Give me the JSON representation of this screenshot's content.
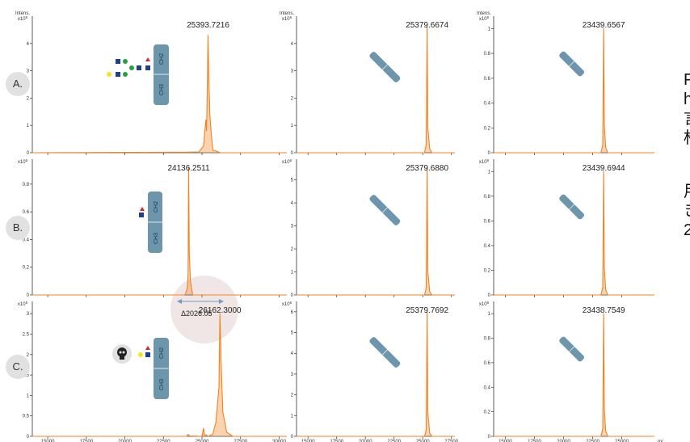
{
  "rows": [
    {
      "label": "A."
    },
    {
      "label": "B."
    },
    {
      "label": "C."
    }
  ],
  "columns": [
    {
      "ylabel": "Intens."
    },
    {
      "ylabel": "Intens."
    },
    {
      "ylabel": "Intens."
    }
  ],
  "delta_label": "Δ2026.05",
  "domain_labels": {
    "ch2": "CH2",
    "ch3": "CH3"
  },
  "side_text": [
    "F",
    "h",
    "言",
    "柞",
    "用",
    "き",
    "2"
  ],
  "colors": {
    "spectrum": "#f58220",
    "domain": "#6d96ad",
    "label_bg": "#e1e1e1",
    "glycan_blue": "#1f3f93",
    "glycan_green": "#23a23c",
    "glycan_yellow": "#f7e41e",
    "glycan_red": "#d8242a",
    "highlight": "#eadcdc",
    "arrow": "#6f9fc0"
  },
  "icons": {
    "glycan": "glycan-structure-icon",
    "toxin": "skull-icon",
    "domain": "antibody-domain-icon"
  },
  "chart_data": [
    {
      "type": "line",
      "row": "A",
      "col": 1,
      "ylabel": "Intens.",
      "exponent": "x10^5",
      "xlim": [
        14000,
        30500
      ],
      "ylim": [
        0,
        5
      ],
      "yticks": [
        0,
        1,
        2,
        3,
        4
      ],
      "xticks": [
        15000,
        17500,
        20000,
        22500,
        25000,
        27500,
        30000
      ],
      "peak_label": "25393.7216",
      "series": [
        {
          "x": [
            14000,
            24000,
            24800,
            25100,
            25250,
            25300,
            25394,
            25450,
            25520,
            25600,
            25700,
            26200,
            30500
          ],
          "y": [
            0,
            0.02,
            0.03,
            0.25,
            1.2,
            0.8,
            4.3,
            2.6,
            1.3,
            0.7,
            0.1,
            0,
            0
          ]
        }
      ]
    },
    {
      "type": "line",
      "row": "A",
      "col": 2,
      "ylabel": "Intens.",
      "exponent": "x10^6",
      "xlim": [
        14000,
        27800
      ],
      "ylim": [
        0,
        5
      ],
      "yticks": [
        0,
        1,
        2,
        3,
        4
      ],
      "xticks": [
        15000,
        17500,
        20000,
        22500,
        25000,
        27500
      ],
      "peak_label": "25379.6674",
      "series": [
        {
          "x": [
            14000,
            25150,
            25300,
            25380,
            25450,
            25600,
            25800,
            27800
          ],
          "y": [
            0,
            0,
            0.3,
            4.6,
            0.9,
            0.15,
            0,
            0
          ]
        }
      ]
    },
    {
      "type": "line",
      "row": "A",
      "col": 3,
      "ylabel": "Intens.",
      "exponent": "x10^6",
      "xlim": [
        14000,
        27800
      ],
      "ylim": [
        0,
        1.1
      ],
      "yticks": [
        0,
        0.2,
        0.4,
        0.6,
        0.8,
        1.0
      ],
      "xticks": [
        15000,
        17500,
        20000,
        22500,
        25000
      ],
      "peak_label": "23439.6567",
      "series": [
        {
          "x": [
            14000,
            23200,
            23360,
            23440,
            23500,
            23620,
            23800,
            27800
          ],
          "y": [
            0,
            0,
            0.06,
            1.0,
            0.22,
            0.04,
            0,
            0
          ]
        }
      ]
    },
    {
      "type": "line",
      "row": "B",
      "col": 1,
      "ylabel": "",
      "exponent": "x10^6",
      "xlim": [
        14000,
        30500
      ],
      "ylim": [
        0,
        0.98
      ],
      "yticks": [
        0,
        0.2,
        0.4,
        0.6,
        0.8
      ],
      "xticks": [
        15000,
        17500,
        20000,
        22500,
        25000,
        27500,
        30000
      ],
      "peak_label": "24136.2511",
      "series": [
        {
          "x": [
            14000,
            23900,
            24050,
            24100,
            24136,
            24180,
            24250,
            24400,
            30500
          ],
          "y": [
            0,
            0,
            0.05,
            0.15,
            0.92,
            0.3,
            0.1,
            0,
            0
          ]
        }
      ]
    },
    {
      "type": "line",
      "row": "B",
      "col": 2,
      "ylabel": "",
      "exponent": "x10^6",
      "xlim": [
        14000,
        27800
      ],
      "ylim": [
        0,
        5.9
      ],
      "yticks": [
        0,
        1,
        2,
        3,
        4,
        5
      ],
      "xticks": [
        15000,
        17500,
        20000,
        22500,
        25000,
        27500
      ],
      "peak_label": "25379.6880",
      "series": [
        {
          "x": [
            14000,
            25150,
            25300,
            25380,
            25450,
            25600,
            25800,
            27800
          ],
          "y": [
            0,
            0,
            0.3,
            5.5,
            1.0,
            0.15,
            0,
            0
          ]
        }
      ]
    },
    {
      "type": "line",
      "row": "B",
      "col": 3,
      "ylabel": "",
      "exponent": "x10^6",
      "xlim": [
        14000,
        27800
      ],
      "ylim": [
        0,
        1.1
      ],
      "yticks": [
        0,
        0.2,
        0.4,
        0.6,
        0.8,
        1.0
      ],
      "xticks": [
        15000,
        17500,
        20000,
        22500,
        25000
      ],
      "peak_label": "23439.6944",
      "series": [
        {
          "x": [
            14000,
            23200,
            23360,
            23440,
            23500,
            23620,
            23800,
            27800
          ],
          "y": [
            0,
            0,
            0.06,
            1.0,
            0.22,
            0.04,
            0,
            0
          ]
        }
      ]
    },
    {
      "type": "line",
      "row": "C",
      "col": 1,
      "ylabel": "",
      "exponent": "x10^5",
      "xlim": [
        14000,
        30500
      ],
      "ylim": [
        0,
        3.3
      ],
      "yticks": [
        0,
        0.5,
        1.0,
        1.5,
        2.0,
        2.5,
        3.0
      ],
      "xticks": [
        15000,
        17500,
        20000,
        22500,
        25000,
        27500,
        30000
      ],
      "xticklabels": [
        "15000",
        "17500",
        "20000",
        "22500",
        "25000",
        "27500",
        "30000"
      ],
      "peak_label": "26162.3000",
      "series": [
        {
          "x": [
            14000,
            24000,
            24100,
            24200,
            25000,
            25100,
            25160,
            25250,
            25400,
            25700,
            25900,
            26100,
            26162,
            26240,
            26350,
            26600,
            27000,
            30500
          ],
          "y": [
            0,
            0,
            0.05,
            0.01,
            0,
            0.2,
            0.03,
            0.04,
            0,
            0.05,
            0.35,
            1.2,
            3.0,
            1.8,
            0.6,
            0.1,
            0,
            0
          ]
        }
      ]
    },
    {
      "type": "line",
      "row": "C",
      "col": 2,
      "ylabel": "",
      "exponent": "x10^6",
      "xlim": [
        14000,
        27800
      ],
      "ylim": [
        0,
        6.5
      ],
      "yticks": [
        0,
        1,
        2,
        3,
        4,
        5,
        6
      ],
      "xticks": [
        15000,
        17500,
        20000,
        22500,
        25000,
        27500
      ],
      "xticklabels": [
        "15000",
        "17500",
        "20000",
        "22500",
        "25000",
        "27500"
      ],
      "peak_label": "25379.7692",
      "series": [
        {
          "x": [
            14000,
            25150,
            25300,
            25380,
            25450,
            25600,
            25800,
            27800
          ],
          "y": [
            0,
            0,
            0.3,
            6.0,
            1.1,
            0.15,
            0,
            0
          ]
        }
      ]
    },
    {
      "type": "line",
      "row": "C",
      "col": 3,
      "ylabel": "",
      "exponent": "x10^6",
      "xlim": [
        14000,
        27800
      ],
      "ylim": [
        0,
        1.1
      ],
      "yticks": [
        0,
        0.2,
        0.4,
        0.6,
        0.8,
        1.0
      ],
      "xticks": [
        15000,
        17500,
        20000,
        22500,
        25000
      ],
      "xticklabels": [
        "15000",
        "17500",
        "20000",
        "22500",
        "25000"
      ],
      "xunit": "m/",
      "peak_label": "23438.7549",
      "series": [
        {
          "x": [
            14000,
            23200,
            23360,
            23440,
            23500,
            23620,
            23800,
            27800
          ],
          "y": [
            0,
            0,
            0.06,
            1.0,
            0.22,
            0.04,
            0,
            0
          ]
        }
      ]
    }
  ]
}
